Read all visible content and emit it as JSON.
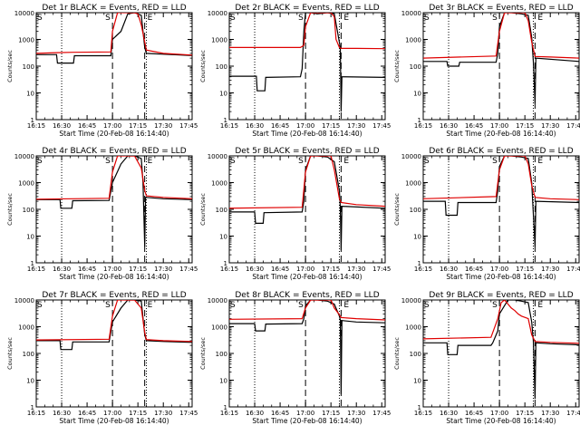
{
  "figure": {
    "xlabel": "Start Time (20-Feb-08 16:14:40)",
    "ylabel": "Counts/sec",
    "marker_s": "S",
    "marker_e": "E"
  },
  "axes": {
    "x_ticks": [
      "16:15",
      "16:30",
      "16:45",
      "17:00",
      "17:15",
      "17:30",
      "17:45"
    ],
    "y_ticks": [
      "1",
      "10",
      "100",
      "1000",
      "10000"
    ]
  },
  "colors": {
    "events": "#000000",
    "lld": "#e00000"
  },
  "chart_data": [
    {
      "type": "line",
      "title": "Det 1r BLACK = Events, RED = LLD",
      "xlabel": "Start Time (20-Feb-08 16:14:40)",
      "ylabel": "Counts/sec",
      "x_unit": "minutes after 16:15",
      "ylim": [
        1,
        10000
      ],
      "y_scale": "log",
      "vlines_dotted": [
        15,
        65
      ],
      "vlines_dashed": [
        45,
        64
      ],
      "series": [
        {
          "name": "BLACK = Events",
          "color": "#000000",
          "x": [
            0,
            12,
            12.5,
            22,
            22.5,
            44,
            45,
            50,
            54,
            58,
            62,
            64,
            65,
            75,
            92
          ],
          "y": [
            270,
            270,
            130,
            130,
            245,
            245,
            1000,
            2000,
            9000,
            12000,
            8000,
            500,
            300,
            280,
            250
          ]
        },
        {
          "name": "RED = LLD",
          "color": "#e00000",
          "x": [
            0,
            12,
            22,
            44,
            45,
            48,
            52,
            58,
            60,
            62,
            64,
            65,
            75,
            92
          ],
          "y": [
            300,
            320,
            330,
            340,
            2000,
            15000,
            12000,
            11000,
            9000,
            3500,
            800,
            400,
            300,
            260
          ]
        }
      ]
    },
    {
      "type": "line",
      "title": "Det 2r BLACK = Events, RED = LLD",
      "xlabel": "Start Time (20-Feb-08 16:14:40)",
      "ylabel": "Counts/sec",
      "x_unit": "minutes after 16:15",
      "ylim": [
        1,
        10000
      ],
      "y_scale": "log",
      "vlines_dotted": [
        15,
        65
      ],
      "vlines_dashed": [
        45,
        66
      ],
      "series": [
        {
          "name": "BLACK = Events",
          "color": "#000000",
          "x": [
            0,
            16,
            16.5,
            21,
            21.5,
            42,
            43,
            44,
            45,
            48,
            52,
            58,
            62,
            65.5,
            66,
            66.5,
            92
          ],
          "y": [
            42,
            42,
            12,
            12,
            38,
            40,
            80,
            2000,
            12000,
            12000,
            9000,
            10000,
            9000,
            500,
            2,
            40,
            38
          ]
        },
        {
          "name": "RED = LLD",
          "color": "#e00000",
          "x": [
            0,
            42,
            44,
            45,
            48,
            54,
            58,
            60,
            62,
            63,
            65,
            66,
            75,
            92
          ],
          "y": [
            500,
            500,
            600,
            3000,
            15000,
            12000,
            10000,
            11000,
            7000,
            1000,
            500,
            460,
            460,
            450
          ]
        }
      ]
    },
    {
      "type": "line",
      "title": "Det 3r BLACK = Events, RED = LLD",
      "xlabel": "Start Time (20-Feb-08 16:14:40)",
      "ylabel": "Counts/sec",
      "x_unit": "minutes after 16:15",
      "ylim": [
        1,
        10000
      ],
      "y_scale": "log",
      "vlines_dotted": [
        15,
        65
      ],
      "vlines_dashed": [
        45,
        66
      ],
      "series": [
        {
          "name": "BLACK = Events",
          "color": "#000000",
          "x": [
            0,
            14,
            14.5,
            21,
            21.5,
            43,
            44,
            45,
            48,
            52,
            58,
            62,
            64,
            65,
            66,
            66.5,
            92
          ],
          "y": [
            150,
            150,
            100,
            100,
            140,
            140,
            300,
            3000,
            12000,
            11000,
            9000,
            8000,
            1200,
            150,
            4,
            200,
            150
          ]
        },
        {
          "name": "RED = LLD",
          "color": "#e00000",
          "x": [
            0,
            43,
            45,
            48,
            54,
            60,
            62,
            64,
            66,
            75,
            92
          ],
          "y": [
            200,
            240,
            2000,
            15000,
            12000,
            10000,
            5000,
            800,
            230,
            220,
            200
          ]
        }
      ]
    },
    {
      "type": "line",
      "title": "Det 4r BLACK = Events, RED = LLD",
      "xlabel": "Start Time (20-Feb-08 16:14:40)",
      "ylabel": "Counts/sec",
      "x_unit": "minutes after 16:15",
      "ylim": [
        1,
        10000
      ],
      "y_scale": "log",
      "vlines_dotted": [
        15,
        65
      ],
      "vlines_dashed": [
        45,
        64
      ],
      "series": [
        {
          "name": "BLACK = Events",
          "color": "#000000",
          "x": [
            0,
            14,
            14.5,
            21,
            21.5,
            43,
            45,
            50,
            54,
            58,
            62,
            63,
            64,
            64.5,
            65,
            75,
            92
          ],
          "y": [
            230,
            230,
            110,
            110,
            210,
            215,
            1000,
            5000,
            12000,
            10000,
            8000,
            1000,
            4,
            280,
            280,
            250,
            230
          ]
        },
        {
          "name": "RED = LLD",
          "color": "#e00000",
          "x": [
            0,
            43,
            45,
            48,
            52,
            58,
            62,
            64,
            65,
            75,
            92
          ],
          "y": [
            240,
            260,
            2500,
            15000,
            12000,
            10000,
            3500,
            500,
            320,
            280,
            250
          ]
        }
      ]
    },
    {
      "type": "line",
      "title": "Det 5r BLACK = Events, RED = LLD",
      "xlabel": "Start Time (20-Feb-08 16:14:40)",
      "ylabel": "Counts/sec",
      "x_unit": "minutes after 16:15",
      "ylim": [
        1,
        10000
      ],
      "y_scale": "log",
      "vlines_dotted": [
        15,
        65
      ],
      "vlines_dashed": [
        45,
        66
      ],
      "series": [
        {
          "name": "BLACK = Events",
          "color": "#000000",
          "x": [
            0,
            15,
            15.5,
            20,
            20.5,
            43,
            44,
            45,
            48,
            52,
            58,
            62,
            65,
            65.5,
            66,
            66.5,
            92
          ],
          "y": [
            80,
            80,
            30,
            30,
            75,
            80,
            200,
            3000,
            12000,
            11000,
            9000,
            6000,
            500,
            120,
            3,
            130,
            110
          ]
        },
        {
          "name": "RED = LLD",
          "color": "#e00000",
          "x": [
            0,
            43,
            45,
            48,
            54,
            60,
            62,
            65,
            66,
            75,
            92
          ],
          "y": [
            110,
            120,
            2500,
            15000,
            12000,
            10000,
            3000,
            250,
            180,
            150,
            130
          ]
        }
      ]
    },
    {
      "type": "line",
      "title": "Det 6r BLACK = Events, RED = LLD",
      "xlabel": "Start Time (20-Feb-08 16:14:40)",
      "ylabel": "Counts/sec",
      "x_unit": "minutes after 16:15",
      "ylim": [
        1,
        10000
      ],
      "y_scale": "log",
      "vlines_dotted": [
        15,
        65
      ],
      "vlines_dashed": [
        45,
        66
      ],
      "series": [
        {
          "name": "BLACK = Events",
          "color": "#000000",
          "x": [
            0,
            13,
            13.5,
            20,
            20.5,
            43,
            44,
            45,
            48,
            52,
            58,
            62,
            64,
            66,
            66.5,
            92
          ],
          "y": [
            200,
            200,
            60,
            60,
            180,
            180,
            500,
            4000,
            12000,
            10000,
            9000,
            8000,
            1000,
            4,
            200,
            180
          ]
        },
        {
          "name": "RED = LLD",
          "color": "#e00000",
          "x": [
            0,
            43,
            45,
            48,
            54,
            60,
            62,
            64,
            66,
            75,
            92
          ],
          "y": [
            250,
            300,
            3000,
            15000,
            12000,
            10000,
            5000,
            800,
            280,
            250,
            230
          ]
        }
      ]
    },
    {
      "type": "line",
      "title": "Det 7r BLACK = Events, RED = LLD",
      "xlabel": "Start Time (20-Feb-08 16:14:40)",
      "ylabel": "Counts/sec",
      "x_unit": "minutes after 16:15",
      "ylim": [
        1,
        10000
      ],
      "y_scale": "log",
      "vlines_dotted": [
        15,
        65
      ],
      "vlines_dashed": [
        45,
        64
      ],
      "series": [
        {
          "name": "BLACK = Events",
          "color": "#000000",
          "x": [
            0,
            14,
            14.5,
            21,
            21.5,
            43,
            45,
            50,
            54,
            58,
            62,
            64,
            65,
            75,
            92
          ],
          "y": [
            300,
            300,
            140,
            140,
            270,
            270,
            1500,
            5000,
            12000,
            11000,
            9000,
            500,
            300,
            280,
            260
          ]
        },
        {
          "name": "RED = LLD",
          "color": "#e00000",
          "x": [
            0,
            43,
            45,
            48,
            52,
            58,
            62,
            64,
            65,
            75,
            92
          ],
          "y": [
            320,
            340,
            2500,
            15000,
            12000,
            10000,
            5000,
            600,
            330,
            300,
            280
          ]
        }
      ]
    },
    {
      "type": "line",
      "title": "Det 8r BLACK = Events, RED = LLD",
      "xlabel": "Start Time (20-Feb-08 16:14:40)",
      "ylabel": "Counts/sec",
      "x_unit": "minutes after 16:15",
      "ylim": [
        1,
        10000
      ],
      "y_scale": "log",
      "vlines_dotted": [
        15,
        65
      ],
      "vlines_dashed": [
        45,
        66
      ],
      "series": [
        {
          "name": "BLACK = Events",
          "color": "#000000",
          "x": [
            0,
            15,
            15.5,
            21,
            21.5,
            43,
            44,
            45,
            48,
            52,
            58,
            62,
            65,
            65.5,
            66,
            66.5,
            75,
            92
          ],
          "y": [
            1300,
            1300,
            700,
            700,
            1250,
            1300,
            2000,
            6000,
            12000,
            11000,
            9000,
            7000,
            2500,
            1800,
            3,
            1700,
            1500,
            1400
          ]
        },
        {
          "name": "RED = LLD",
          "color": "#e00000",
          "x": [
            0,
            43,
            45,
            48,
            54,
            60,
            62,
            65,
            66,
            75,
            92
          ],
          "y": [
            1900,
            2000,
            5000,
            15000,
            12000,
            10000,
            5000,
            2800,
            2200,
            2000,
            1800
          ]
        }
      ]
    },
    {
      "type": "line",
      "title": "Det 9r BLACK = Events, RED = LLD",
      "xlabel": "Start Time (20-Feb-08 16:14:40)",
      "ylabel": "Counts/sec",
      "x_unit": "minutes after 16:15",
      "ylim": [
        1,
        10000
      ],
      "y_scale": "log",
      "vlines_dotted": [
        15,
        65
      ],
      "vlines_dashed": [
        45,
        66
      ],
      "series": [
        {
          "name": "BLACK = Events",
          "color": "#000000",
          "x": [
            0,
            14,
            14.5,
            20,
            20.5,
            40,
            41,
            44,
            45,
            50,
            54,
            58,
            62,
            64,
            65,
            66,
            66.5,
            75,
            92
          ],
          "y": [
            250,
            250,
            90,
            90,
            200,
            200,
            250,
            700,
            3000,
            12000,
            10000,
            9000,
            8000,
            1500,
            300,
            2,
            250,
            230,
            210
          ]
        },
        {
          "name": "RED = LLD",
          "color": "#e00000",
          "x": [
            0,
            40,
            44,
            46,
            48,
            52,
            54,
            56,
            58,
            62,
            64,
            66,
            75,
            92
          ],
          "y": [
            350,
            400,
            2000,
            8000,
            15000,
            5000,
            4000,
            3000,
            2500,
            2000,
            500,
            280,
            260,
            240
          ]
        }
      ]
    }
  ]
}
